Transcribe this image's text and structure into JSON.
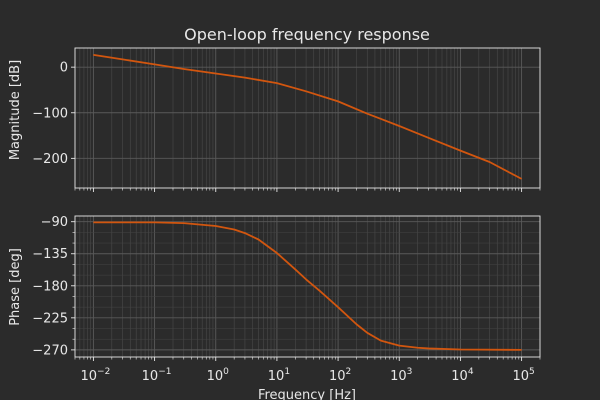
{
  "chart_data": {
    "type": "line",
    "title": "Open-loop frequency response",
    "xlabel": "Frequency [Hz]",
    "x_scale": "log",
    "xlim": [
      0.005,
      200000
    ],
    "x_tick_labels": [
      {
        "base": "10",
        "exp": "−2"
      },
      {
        "base": "10",
        "exp": "−1"
      },
      {
        "base": "10",
        "exp": "0"
      },
      {
        "base": "10",
        "exp": "1"
      },
      {
        "base": "10",
        "exp": "2"
      },
      {
        "base": "10",
        "exp": "3"
      },
      {
        "base": "10",
        "exp": "4"
      },
      {
        "base": "10",
        "exp": "5"
      }
    ],
    "x_ticks": [
      0.01,
      0.1,
      1,
      10,
      100,
      1000,
      10000,
      100000
    ],
    "line_color": "#d2560f",
    "background_color": "#2b2b2b",
    "grid": true,
    "panels": [
      {
        "ylabel": "Magnitude [dB]",
        "ylim": [
          -265,
          42
        ],
        "y_ticks": [
          0,
          -100,
          -200
        ],
        "y_tick_labels": [
          "0",
          "−100",
          "−200"
        ],
        "series": [
          {
            "x": [
              0.01,
              0.03,
              0.1,
              0.3,
              1,
              3,
              10,
              30,
              100,
              300,
              1000,
              3000,
              10000,
              30000,
              100000
            ],
            "values": [
              27,
              17,
              6,
              -4,
              -14,
              -23,
              -35,
              -53,
              -75,
              -102,
              -129,
              -155,
              -183,
              -208,
              -245
            ]
          }
        ]
      },
      {
        "ylabel": "Phase [deg]",
        "ylim": [
          -280,
          -82
        ],
        "y_ticks": [
          -90,
          -135,
          -180,
          -225,
          -270
        ],
        "y_tick_labels": [
          "−90",
          "−135",
          "−180",
          "−225",
          "−270"
        ],
        "series": [
          {
            "x": [
              0.01,
              0.03,
              0.1,
              0.3,
              1,
              2,
              3,
              5,
              10,
              20,
              30,
              50,
              100,
              200,
              300,
              500,
              1000,
              2000,
              3000,
              10000,
              100000
            ],
            "values": [
              -91,
              -91,
              -91,
              -92,
              -96,
              -101,
              -106,
              -115,
              -134,
              -157,
              -171,
              -187,
              -210,
              -234,
              -246,
              -257,
              -264,
              -267,
              -268,
              -269.5,
              -270
            ]
          }
        ]
      }
    ]
  }
}
